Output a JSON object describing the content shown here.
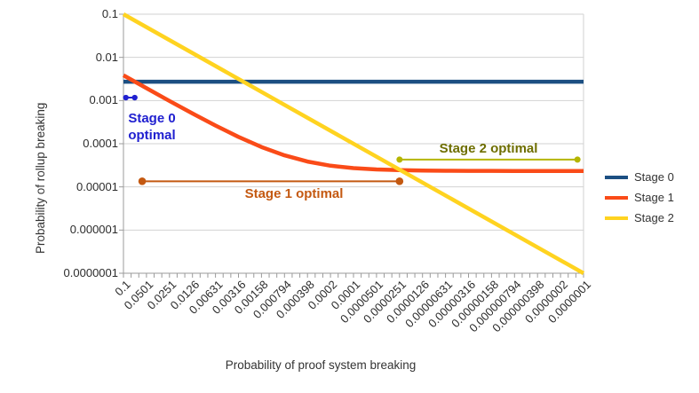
{
  "chart_data": {
    "type": "line",
    "title": "",
    "xlabel": "Probability of proof system breaking",
    "ylabel": "Probability of rollup breaking",
    "x_scale": "log",
    "y_scale": "log",
    "x_range": [
      0.1,
      1e-07
    ],
    "y_range": [
      0.1,
      1e-07
    ],
    "grid": true,
    "legend_position": "right",
    "x_tick_labels": [
      "0.1",
      "0.0501",
      "0.0251",
      "0.0126",
      "0.00631",
      "0.00316",
      "0.00158",
      "0.000794",
      "0.000398",
      "0.0002",
      "0.0001",
      "0.0000501",
      "0.0000251",
      "0.0000126",
      "0.00000631",
      "0.00000316",
      "0.00000158",
      "0.000000794",
      "0.000000398",
      "0.0000002",
      "0.0000001"
    ],
    "y_tick_labels": [
      "0.1",
      "0.01",
      "0.001",
      "0.0001",
      "0.00001",
      "0.000001",
      "0.0000001"
    ],
    "series": [
      {
        "name": "Stage 0",
        "color": "#1c4f82",
        "points": [
          [
            0.1,
            0.00273
          ],
          [
            1e-07,
            0.00273
          ]
        ]
      },
      {
        "name": "Stage 1",
        "color": "#fa4b18",
        "points": [
          [
            0.1,
            0.003833
          ],
          [
            0.0501187,
            0.001933
          ],
          [
            0.0251189,
            0.00098
          ],
          [
            0.0125893,
            0.000503
          ],
          [
            0.00630957,
            0.0002638
          ],
          [
            0.00316228,
            0.0001439
          ],
          [
            0.00158489,
            8.38e-05
          ],
          [
            0.000794328,
            5.37e-05
          ],
          [
            0.000398107,
            3.86e-05
          ],
          [
            0.000199526,
            3.1e-05
          ],
          [
            0.0001,
            2.72e-05
          ],
          [
            5.01187e-05,
            2.53e-05
          ],
          [
            2.51189e-05,
            2.44e-05
          ],
          [
            1.25893e-05,
            2.39e-05
          ],
          [
            6.30957e-06,
            2.36e-05
          ],
          [
            3.16228e-06,
            2.35e-05
          ],
          [
            1.58489e-06,
            2.346e-05
          ],
          [
            7.94328e-07,
            2.343e-05
          ],
          [
            3.98107e-07,
            2.342e-05
          ],
          [
            1.99526e-07,
            2.341e-05
          ],
          [
            1e-07,
            2.34e-05
          ]
        ]
      },
      {
        "name": "Stage 2",
        "color": "#ffd320",
        "points": [
          [
            0.1,
            0.1
          ],
          [
            1e-07,
            1e-07
          ]
        ]
      }
    ],
    "annotations": {
      "stage0": {
        "label": "Stage 0 optimal",
        "line_color": "#2020d0",
        "text_color": "#2020d0",
        "x1": 0.093,
        "x2": 0.0713,
        "y": 0.00117
      },
      "stage1": {
        "label": "Stage 1 optimal",
        "line_color": "#c45911",
        "text_color": "#c45911",
        "x1": 0.057,
        "x2": 2.51e-05,
        "y": 1.35e-05
      },
      "stage2": {
        "label": "Stage 2 optimal",
        "line_color": "#b5b500",
        "text_color": "#6e6e00",
        "x1": 2.51e-05,
        "x2": 1.2e-07,
        "y": 4.3e-05
      }
    },
    "legend": {
      "items": [
        {
          "label": "Stage 0",
          "color": "#1c4f82"
        },
        {
          "label": "Stage 1",
          "color": "#fa4b18"
        },
        {
          "label": "Stage 2",
          "color": "#ffd320"
        }
      ]
    }
  }
}
